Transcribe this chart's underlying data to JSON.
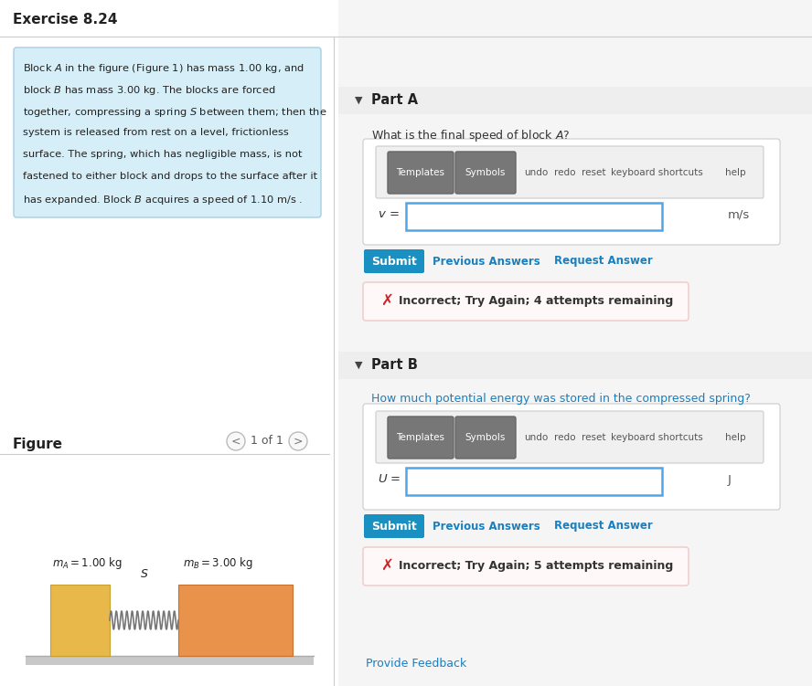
{
  "title": "Exercise 8.24",
  "bg_color": "#ffffff",
  "problem_text_lines": [
    "Block $\\mathit{A}$ in the figure (Figure 1) has mass 1.00 kg, and",
    "block $\\mathit{B}$ has mass 3.00 kg. The blocks are forced",
    "together, compressing a spring $S$ between them; then the",
    "system is released from rest on a level, frictionless",
    "surface. The spring, which has negligible mass, is not",
    "fastened to either block and drops to the surface after it",
    "has expanded. Block $\\mathit{B}$ acquires a speed of 1.10 m/s ."
  ],
  "problem_box_color": "#d6eef8",
  "problem_box_border": "#a8cfe0",
  "figure_label": "Figure",
  "figure_nav": "1 of 1",
  "block_A_color": "#e8b84b",
  "block_B_color": "#e8924b",
  "spring_color": "#888888",
  "ground_color": "#cccccc",
  "mA_label": "$m_A = 1.00$ kg",
  "mB_label": "$m_B = 3.00$ kg",
  "spring_label": "$S$",
  "partA_label": "Part A",
  "partA_question": "What is the final speed of block $\\mathit{A}$?",
  "partA_var": "$v$ =",
  "partA_unit": "m/s",
  "partA_error": "Incorrect; Try Again; 4 attempts remaining",
  "partB_label": "Part B",
  "partB_question": "How much potential energy was stored in the compressed spring?",
  "partB_var": "$U$ =",
  "partB_unit": "J",
  "partB_error": "Incorrect; Try Again; 5 attempts remaining",
  "submit_color": "#1a8fc1",
  "submit_text_color": "#ffffff",
  "link_color": "#1a7fbf",
  "error_border_color": "#e8c8c8",
  "error_text_color": "#333333",
  "toolbar_color": "#6b6b6b",
  "input_border_color": "#4da6e8",
  "provide_feedback_color": "#1a7fbf",
  "divider_color": "#cccccc",
  "part_header_bg": "#eeeeee",
  "right_panel_bg": "#f5f5f5"
}
